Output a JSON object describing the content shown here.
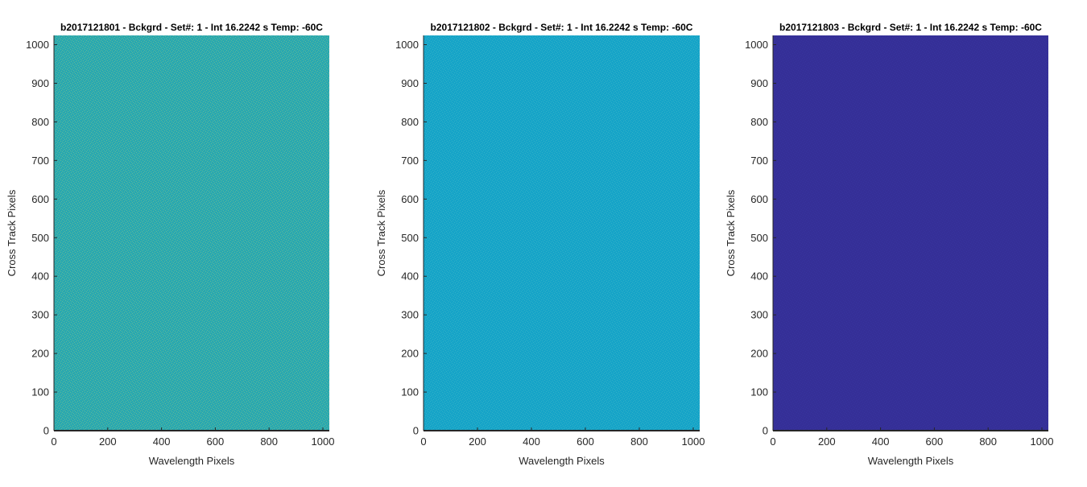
{
  "chart_data": [
    {
      "type": "heatmap",
      "title": "b2017121801 - Bckgrd - Set#: 1 - Int 16.2242 s Temp: -60C",
      "xlabel": "Wavelength Pixels",
      "ylabel": "Cross Track Pixels",
      "xlim": [
        0,
        1024
      ],
      "ylim": [
        0,
        1024
      ],
      "xticks": [
        0,
        200,
        400,
        600,
        800,
        1000
      ],
      "yticks": [
        0,
        100,
        200,
        300,
        400,
        500,
        600,
        700,
        800,
        900,
        1000
      ],
      "fill_color": "#2aa8b0",
      "noise_color": "#9fcf7a"
    },
    {
      "type": "heatmap",
      "title": "b2017121802 - Bckgrd - Set#: 1 - Int 16.2242 s Temp: -60C",
      "xlabel": "Wavelength Pixels",
      "ylabel": "Cross Track Pixels",
      "xlim": [
        0,
        1024
      ],
      "ylim": [
        0,
        1024
      ],
      "xticks": [
        0,
        200,
        400,
        600,
        800,
        1000
      ],
      "yticks": [
        0,
        100,
        200,
        300,
        400,
        500,
        600,
        700,
        800,
        900,
        1000
      ],
      "fill_color": "#16a4c8",
      "noise_color": "#4fc0c8"
    },
    {
      "type": "heatmap",
      "title": "b2017121803 - Bckgrd - Set#: 1 - Int 16.2242 s Temp: -60C",
      "xlabel": "Wavelength Pixels",
      "ylabel": "Cross Track Pixels",
      "xlim": [
        0,
        1024
      ],
      "ylim": [
        0,
        1024
      ],
      "xticks": [
        0,
        200,
        400,
        600,
        800,
        1000
      ],
      "yticks": [
        0,
        100,
        200,
        300,
        400,
        500,
        600,
        700,
        800,
        900,
        1000
      ],
      "fill_color": "#352f97",
      "noise_color": "#3a3aa6"
    }
  ]
}
